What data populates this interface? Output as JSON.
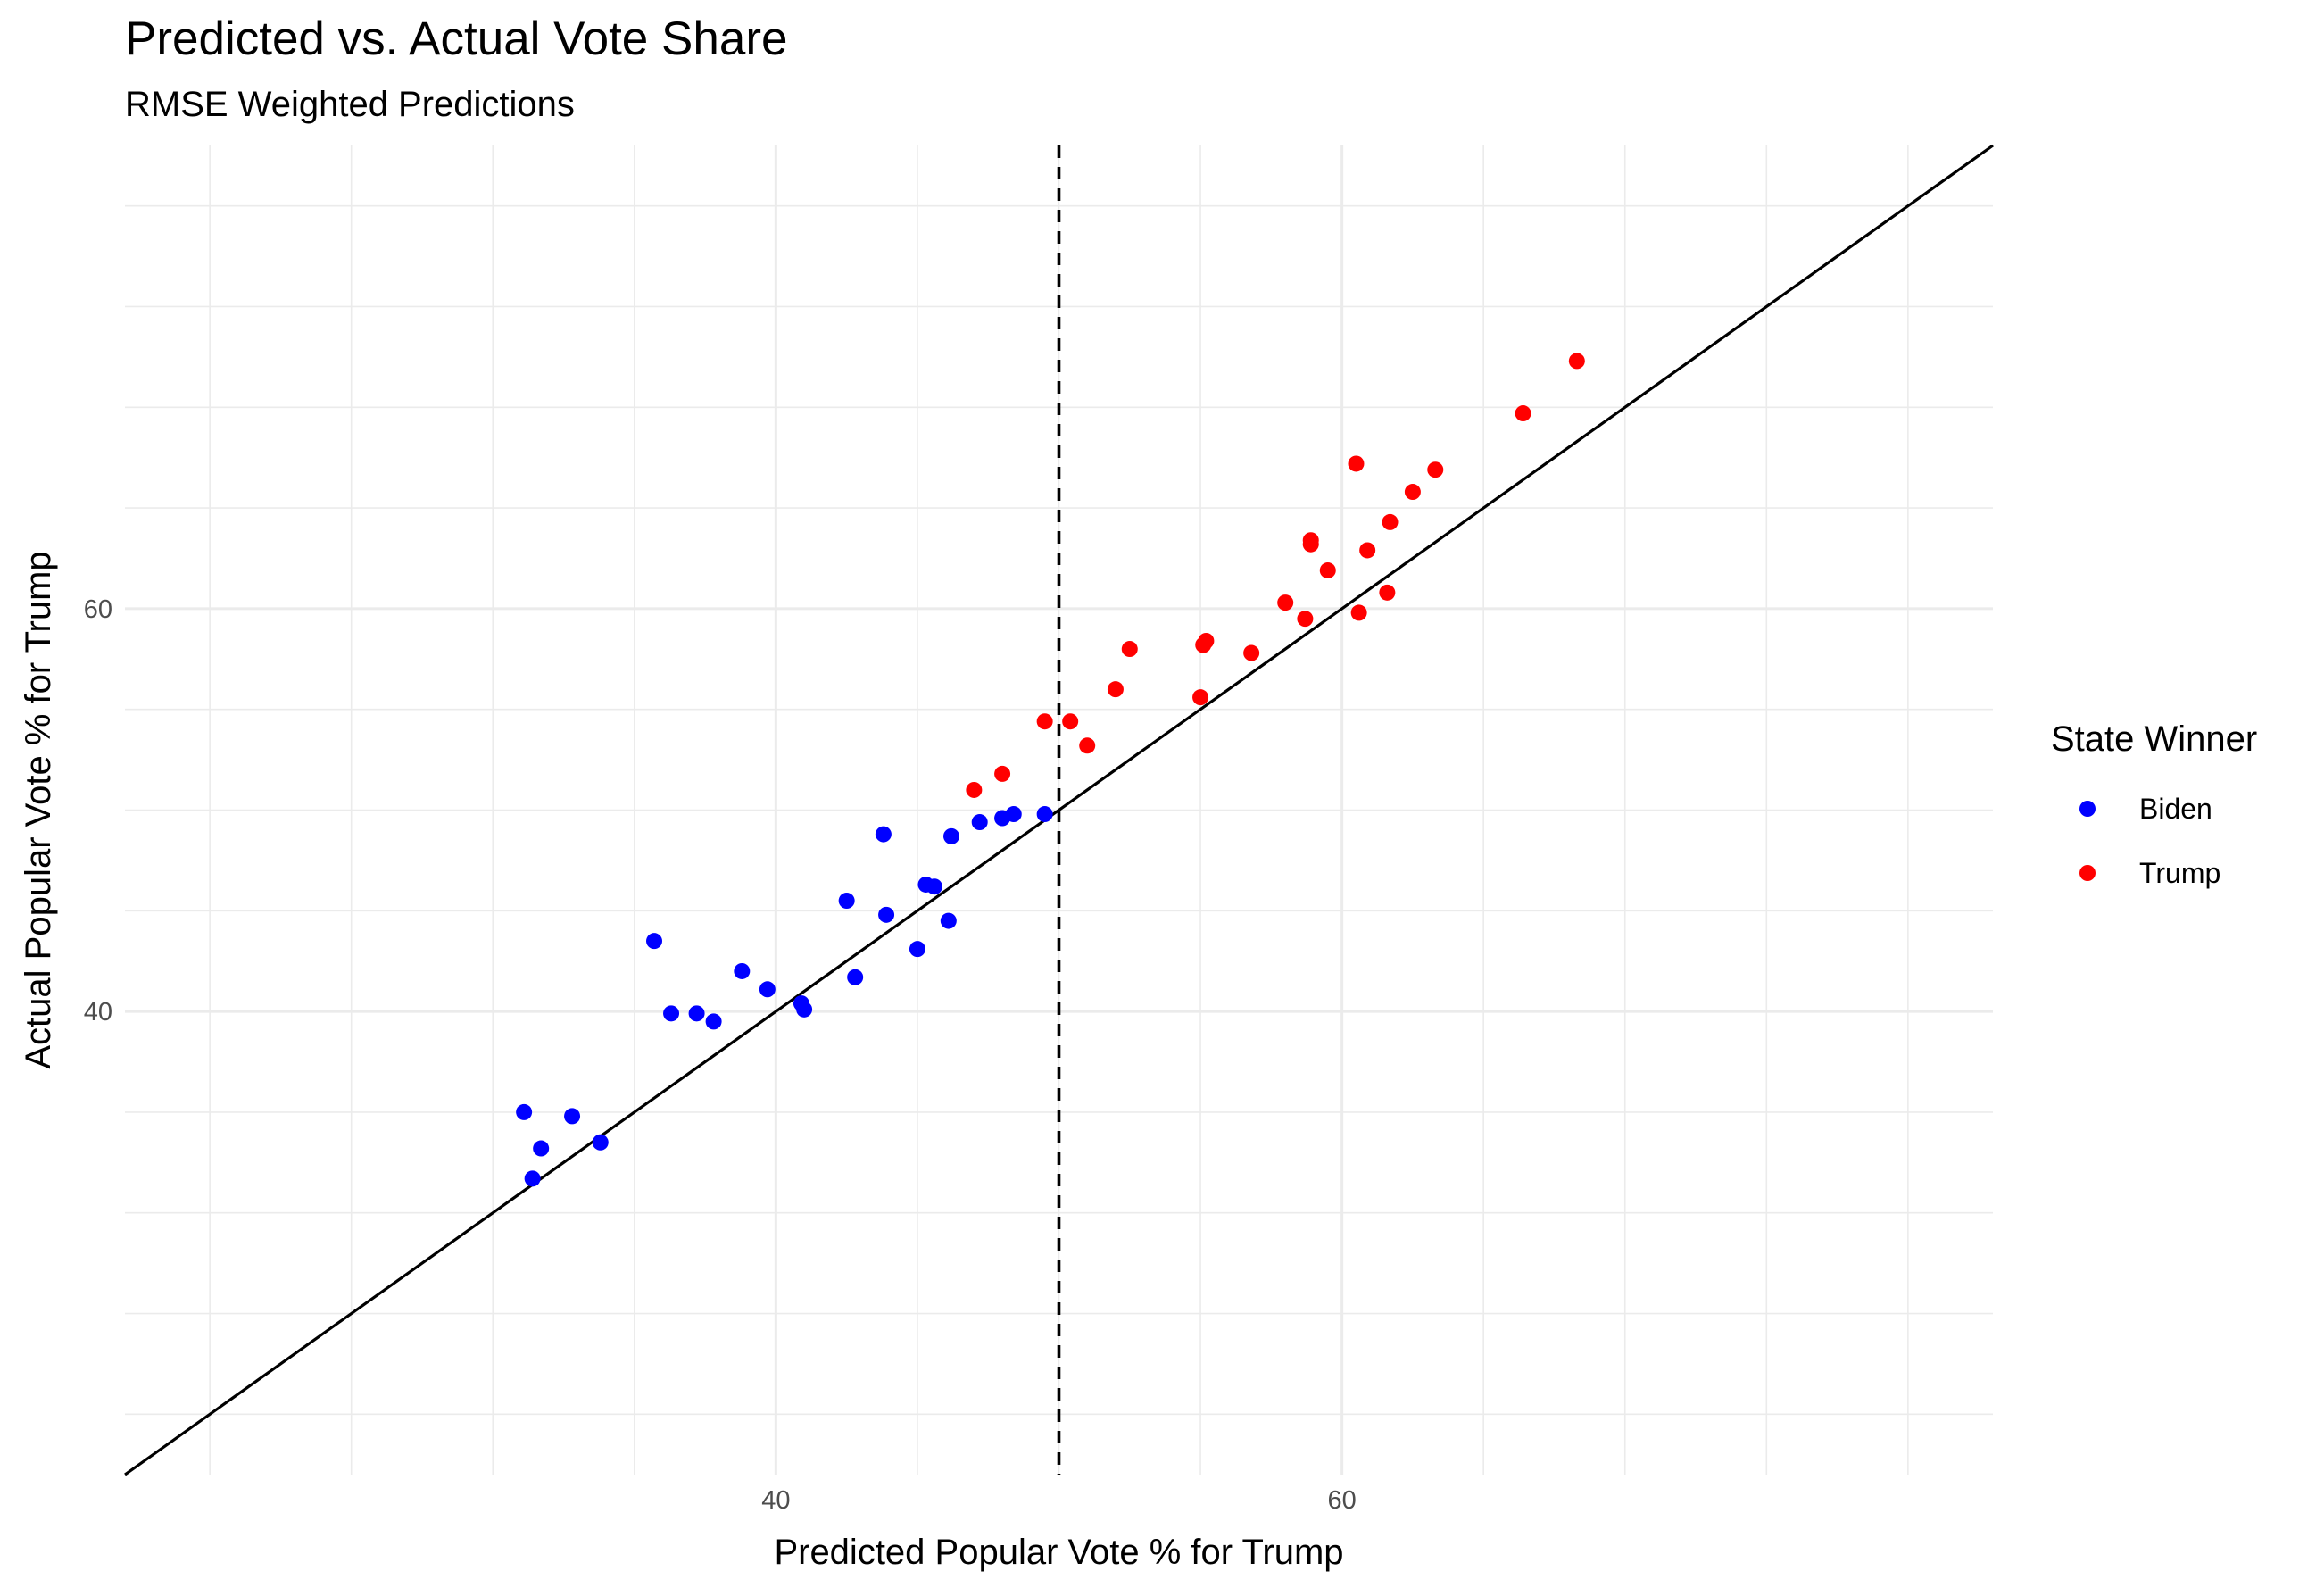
{
  "chart_data": {
    "type": "scatter",
    "title": "Predicted vs. Actual Vote Share",
    "subtitle": "RMSE Weighted Predictions",
    "xlabel": "Predicted Popular Vote % for Trump",
    "ylabel": "Actual Popular Vote % for Trump",
    "xlim": [
      17,
      83
    ],
    "ylim": [
      17,
      83
    ],
    "x_ticks": [
      40,
      60
    ],
    "y_ticks": [
      40,
      60
    ],
    "grid": true,
    "reference_lines": {
      "identity": "y = x",
      "vertical_dashed_x": 50
    },
    "legend": {
      "title": "State Winner",
      "position": "right",
      "items": [
        {
          "label": "Biden",
          "color": "#0000ff"
        },
        {
          "label": "Trump",
          "color": "#ff0000"
        }
      ]
    },
    "series": [
      {
        "name": "Biden",
        "color": "#0000ff",
        "points": [
          [
            31.1,
            35.0
          ],
          [
            31.4,
            31.7
          ],
          [
            31.7,
            33.2
          ],
          [
            32.8,
            34.8
          ],
          [
            33.8,
            33.5
          ],
          [
            35.7,
            43.5
          ],
          [
            36.3,
            39.9
          ],
          [
            37.8,
            39.5
          ],
          [
            37.2,
            39.9
          ],
          [
            38.8,
            42.0
          ],
          [
            39.7,
            41.1
          ],
          [
            40.9,
            40.4
          ],
          [
            41.0,
            40.1
          ],
          [
            42.5,
            45.5
          ],
          [
            42.8,
            41.7
          ],
          [
            43.8,
            48.8
          ],
          [
            43.9,
            44.8
          ],
          [
            45.0,
            43.1
          ],
          [
            45.3,
            46.3
          ],
          [
            45.6,
            46.2
          ],
          [
            46.1,
            44.5
          ],
          [
            46.2,
            48.7
          ],
          [
            47.2,
            49.4
          ],
          [
            48.0,
            49.6
          ],
          [
            48.4,
            49.8
          ],
          [
            49.5,
            49.8
          ]
        ]
      },
      {
        "name": "Trump",
        "color": "#ff0000",
        "points": [
          [
            47.0,
            51.0
          ],
          [
            48.0,
            51.8
          ],
          [
            49.5,
            54.4
          ],
          [
            50.4,
            54.4
          ],
          [
            51.0,
            53.2
          ],
          [
            52.0,
            56.0
          ],
          [
            52.5,
            58.0
          ],
          [
            55.0,
            55.6
          ],
          [
            55.1,
            58.2
          ],
          [
            55.2,
            58.4
          ],
          [
            56.8,
            57.8
          ],
          [
            58.0,
            60.3
          ],
          [
            58.7,
            59.5
          ],
          [
            58.9,
            63.2
          ],
          [
            58.9,
            63.4
          ],
          [
            59.5,
            61.9
          ],
          [
            60.5,
            67.2
          ],
          [
            60.6,
            59.8
          ],
          [
            60.9,
            62.9
          ],
          [
            61.6,
            60.8
          ],
          [
            61.7,
            64.3
          ],
          [
            62.5,
            65.8
          ],
          [
            63.3,
            66.9
          ],
          [
            66.4,
            69.7
          ],
          [
            68.3,
            72.3
          ]
        ]
      }
    ]
  }
}
